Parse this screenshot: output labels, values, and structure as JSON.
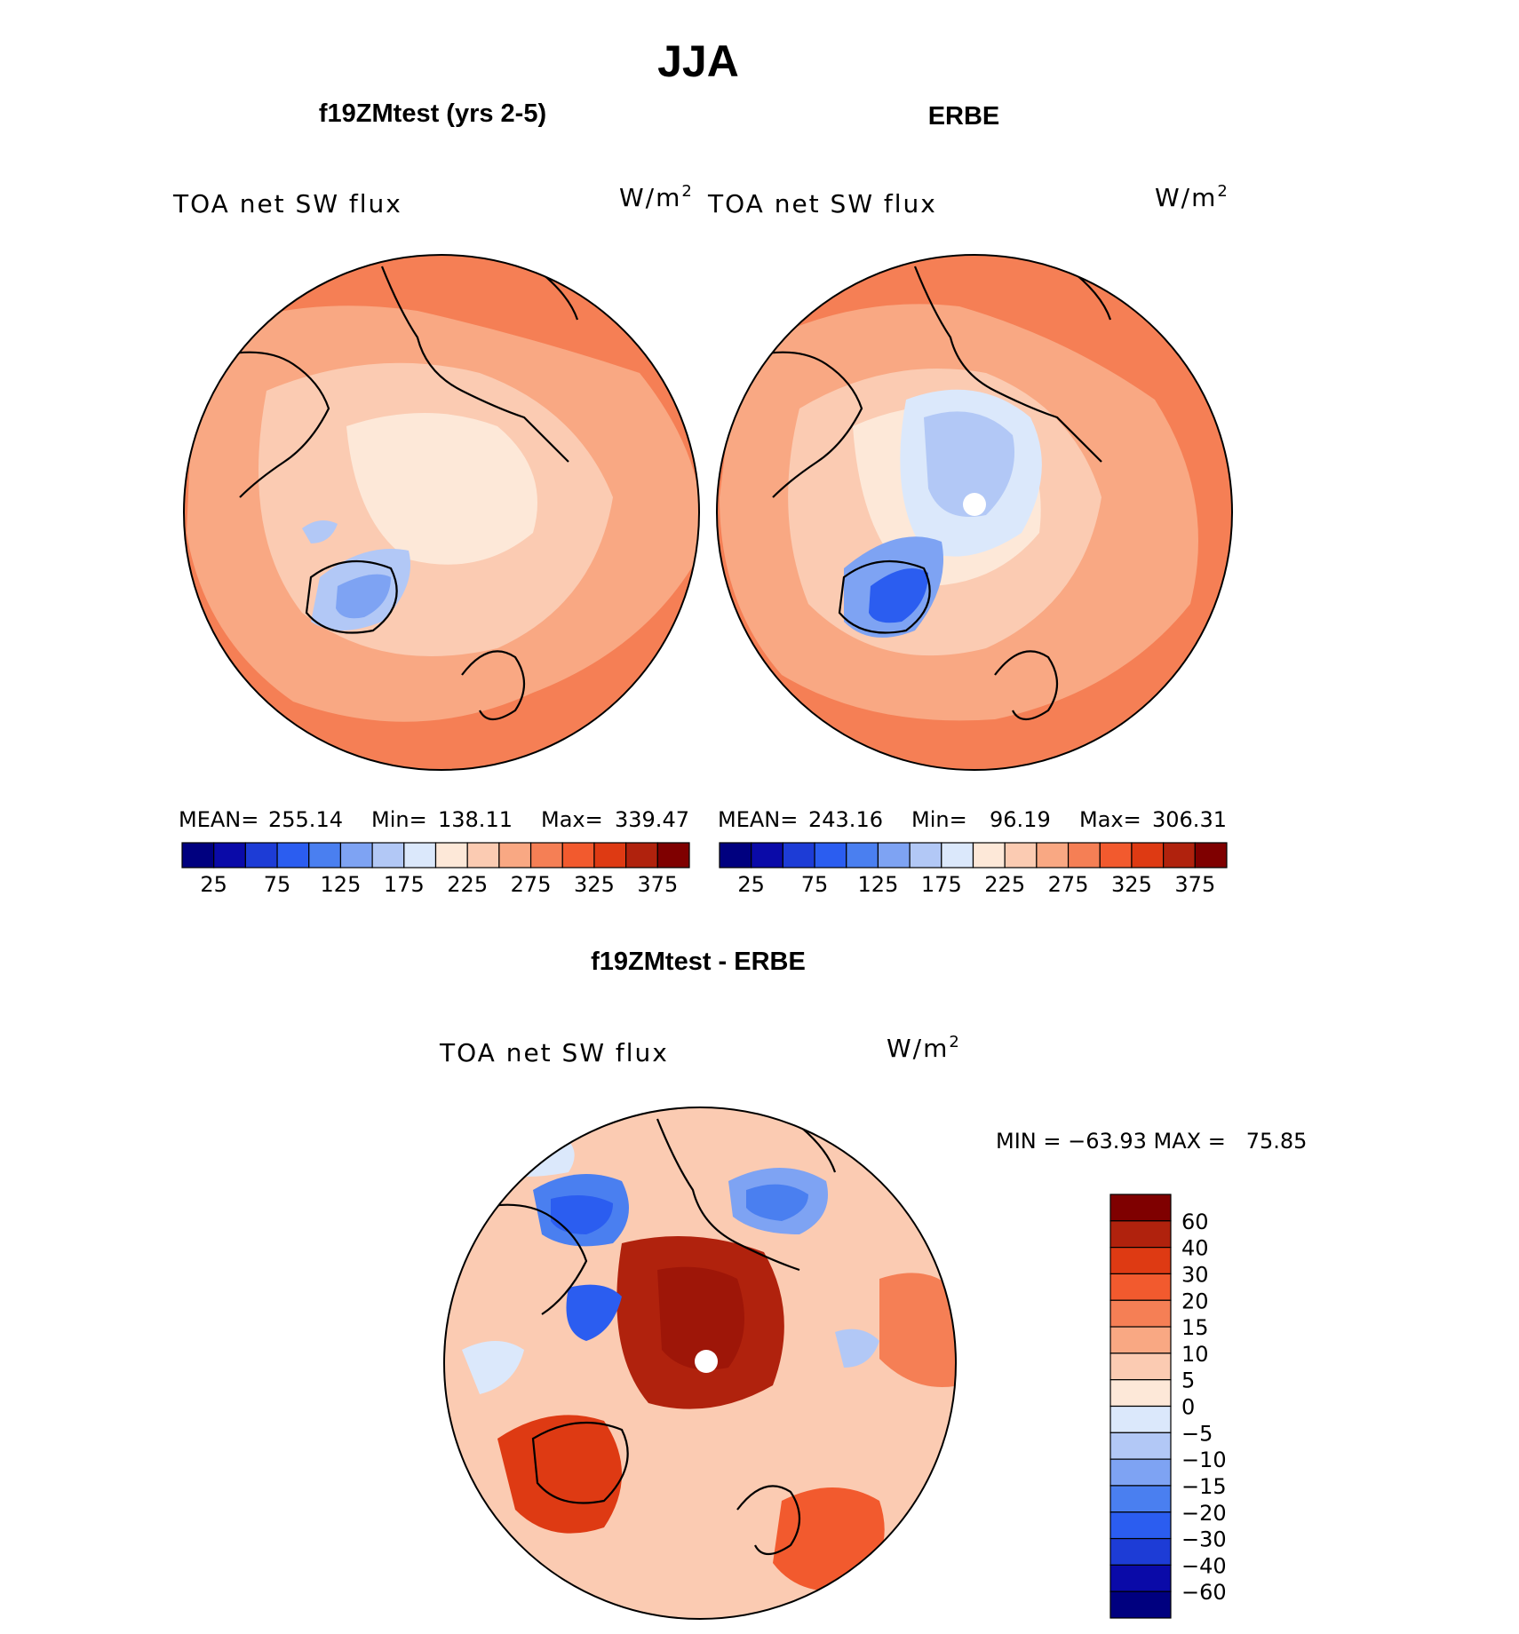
{
  "title": "JJA",
  "colors": {
    "seq": [
      "#00007f",
      "#0a0aa8",
      "#1d3cd6",
      "#2b5df0",
      "#4a7ff0",
      "#7ea3f3",
      "#b2c8f6",
      "#dbe8fb",
      "#fde8d8",
      "#fbcbb2",
      "#f9a883",
      "#f57f55",
      "#f25a2e",
      "#de3a13",
      "#b0220d",
      "#7f0000"
    ],
    "div": [
      "#00007f",
      "#0a0aa8",
      "#1d3cd6",
      "#2b5df0",
      "#4a7ff0",
      "#7ea3f3",
      "#b2c8f6",
      "#dbe8fb",
      "#fde8d8",
      "#fbcbb2",
      "#f9a883",
      "#f57f55",
      "#f25a2e",
      "#de3a13",
      "#b0220d",
      "#7f0000"
    ],
    "coast": "#000000",
    "hole": "#ffffff"
  },
  "panels": [
    {
      "id": "model",
      "heading": "f19ZMtest (yrs 2-5)",
      "variable": "TOA net SW flux",
      "units": "W/m",
      "units_sup": "2",
      "mean_label": "MEAN=",
      "mean": "255.14",
      "min_label": "Min=",
      "min": "138.11",
      "max_label": "Max=",
      "max": "339.47",
      "colorbar_ticks": [
        "25",
        "75",
        "125",
        "175",
        "225",
        "275",
        "325",
        "375"
      ],
      "map": {
        "type": "polar-stereographic",
        "hemisphere": "north",
        "polar_hole": false
      }
    },
    {
      "id": "obs",
      "heading": "ERBE",
      "variable": "TOA net SW flux",
      "units": "W/m",
      "units_sup": "2",
      "mean_label": "MEAN=",
      "mean": "243.16",
      "min_label": "Min=",
      "min": "96.19",
      "max_label": "Max=",
      "max": "306.31",
      "colorbar_ticks": [
        "25",
        "75",
        "125",
        "175",
        "225",
        "275",
        "325",
        "375"
      ],
      "map": {
        "type": "polar-stereographic",
        "hemisphere": "north",
        "polar_hole": true
      }
    },
    {
      "id": "diff",
      "heading": "f19ZMtest - ERBE",
      "variable": "TOA net SW flux",
      "units": "W/m",
      "units_sup": "2",
      "minmax_text": "MIN = −63.93 MAX =   75.85",
      "colorbar_ticks": [
        "60",
        "40",
        "30",
        "20",
        "15",
        "10",
        "5",
        "0",
        "−5",
        "−10",
        "−15",
        "−20",
        "−30",
        "−40",
        "−60"
      ],
      "map": {
        "type": "polar-stereographic",
        "hemisphere": "north",
        "polar_hole": true
      }
    }
  ]
}
